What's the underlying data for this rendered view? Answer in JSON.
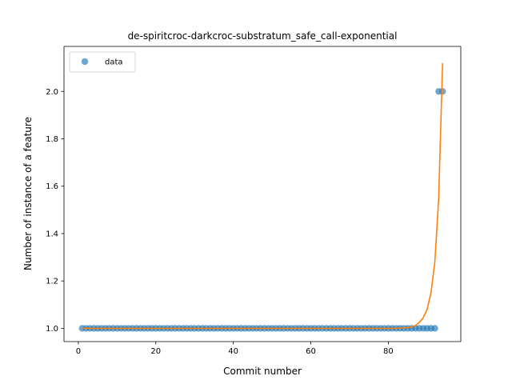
{
  "chart_data": {
    "type": "scatter",
    "title": "de-spiritcroc-darkcroc-substratum_safe_call-exponential",
    "xlabel": "Commit number",
    "ylabel": "Number of instance of a feature",
    "xlim": [
      -3.7,
      98.7
    ],
    "ylim": [
      0.944,
      2.19
    ],
    "xticks": [
      0,
      20,
      40,
      60,
      80
    ],
    "yticks": [
      1.0,
      1.2,
      1.4,
      1.6,
      1.8,
      2.0
    ],
    "xtick_labels": [
      "0",
      "20",
      "40",
      "60",
      "80"
    ],
    "ytick_labels": [
      "1.0",
      "1.2",
      "1.4",
      "1.6",
      "1.8",
      "2.0"
    ],
    "grid": false,
    "legend": {
      "position": "upper-left",
      "entries": [
        "data"
      ]
    },
    "series": [
      {
        "name": "data",
        "kind": "scatter",
        "color": "#1f77b4",
        "x": [
          1,
          2,
          3,
          4,
          5,
          6,
          7,
          8,
          9,
          10,
          11,
          12,
          13,
          14,
          15,
          16,
          17,
          18,
          19,
          20,
          21,
          22,
          23,
          24,
          25,
          26,
          27,
          28,
          29,
          30,
          31,
          32,
          33,
          34,
          35,
          36,
          37,
          38,
          39,
          40,
          41,
          42,
          43,
          44,
          45,
          46,
          47,
          48,
          49,
          50,
          51,
          52,
          53,
          54,
          55,
          56,
          57,
          58,
          59,
          60,
          61,
          62,
          63,
          64,
          65,
          66,
          67,
          68,
          69,
          70,
          71,
          72,
          73,
          74,
          75,
          76,
          77,
          78,
          79,
          80,
          81,
          82,
          83,
          84,
          85,
          86,
          87,
          88,
          89,
          90,
          91,
          92,
          93,
          94
        ],
        "y": [
          1,
          1,
          1,
          1,
          1,
          1,
          1,
          1,
          1,
          1,
          1,
          1,
          1,
          1,
          1,
          1,
          1,
          1,
          1,
          1,
          1,
          1,
          1,
          1,
          1,
          1,
          1,
          1,
          1,
          1,
          1,
          1,
          1,
          1,
          1,
          1,
          1,
          1,
          1,
          1,
          1,
          1,
          1,
          1,
          1,
          1,
          1,
          1,
          1,
          1,
          1,
          1,
          1,
          1,
          1,
          1,
          1,
          1,
          1,
          1,
          1,
          1,
          1,
          1,
          1,
          1,
          1,
          1,
          1,
          1,
          1,
          1,
          1,
          1,
          1,
          1,
          1,
          1,
          1,
          1,
          1,
          1,
          1,
          1,
          1,
          1,
          1,
          1,
          1,
          1,
          1,
          1,
          2,
          2
        ]
      },
      {
        "kind": "line",
        "color": "#ff7f0e",
        "x": [
          1,
          78,
          80,
          82,
          84,
          85,
          86,
          87,
          88,
          89,
          90,
          91,
          92,
          93,
          94
        ],
        "y": [
          1.0,
          1.0,
          1.0,
          1.0,
          1.002,
          1.003,
          1.006,
          1.012,
          1.025,
          1.045,
          1.08,
          1.15,
          1.28,
          1.55,
          2.12
        ]
      }
    ]
  }
}
